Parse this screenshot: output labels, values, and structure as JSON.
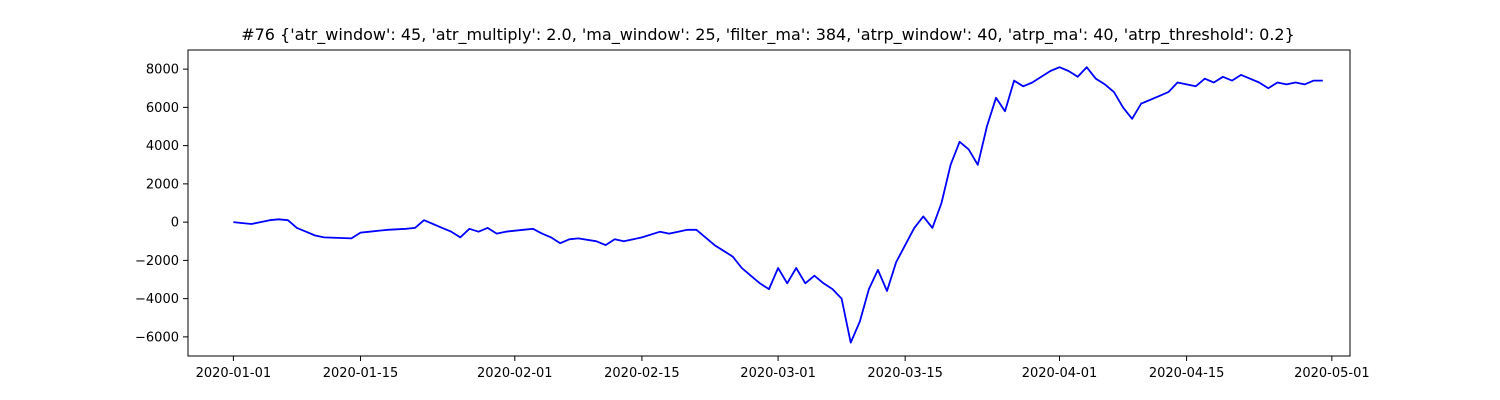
{
  "chart_data": {
    "type": "line",
    "title": "#76 {'atr_window': 45, 'atr_multiply': 2.0, 'ma_window': 25, 'filter_ma': 384, 'atrp_window': 40, 'atrp_ma': 40, 'atrp_threshold': 0.2}",
    "xlabel": "",
    "ylabel": "",
    "xlim": [
      "2019-12-27",
      "2020-05-03"
    ],
    "ylim": [
      -7000,
      9000
    ],
    "x_ticks": [
      "2020-01-01",
      "2020-01-15",
      "2020-02-01",
      "2020-02-15",
      "2020-03-01",
      "2020-03-15",
      "2020-04-01",
      "2020-04-15",
      "2020-05-01"
    ],
    "y_ticks": [
      -6000,
      -4000,
      -2000,
      0,
      2000,
      4000,
      6000,
      8000
    ],
    "grid": false,
    "line_color": "#0000ff",
    "series": [
      {
        "x": [
          "2020-01-01",
          "2020-01-02",
          "2020-01-03",
          "2020-01-04",
          "2020-01-05",
          "2020-01-06",
          "2020-01-07",
          "2020-01-08",
          "2020-01-09",
          "2020-01-10",
          "2020-01-11",
          "2020-01-14",
          "2020-01-15",
          "2020-01-16",
          "2020-01-18",
          "2020-01-20",
          "2020-01-21",
          "2020-01-22",
          "2020-01-23",
          "2020-01-24",
          "2020-01-25",
          "2020-01-26",
          "2020-01-27",
          "2020-01-28",
          "2020-01-29",
          "2020-01-30",
          "2020-01-31",
          "2020-02-01",
          "2020-02-03",
          "2020-02-04",
          "2020-02-05",
          "2020-02-06",
          "2020-02-07",
          "2020-02-08",
          "2020-02-10",
          "2020-02-11",
          "2020-02-12",
          "2020-02-13",
          "2020-02-15",
          "2020-02-17",
          "2020-02-18",
          "2020-02-19",
          "2020-02-20",
          "2020-02-21",
          "2020-02-22",
          "2020-02-23",
          "2020-02-24",
          "2020-02-25",
          "2020-02-26",
          "2020-02-27",
          "2020-02-28",
          "2020-02-29",
          "2020-03-01",
          "2020-03-02",
          "2020-03-03",
          "2020-03-04",
          "2020-03-05",
          "2020-03-06",
          "2020-03-07",
          "2020-03-08",
          "2020-03-09",
          "2020-03-10",
          "2020-03-11",
          "2020-03-12",
          "2020-03-13",
          "2020-03-14",
          "2020-03-15",
          "2020-03-16",
          "2020-03-17",
          "2020-03-18",
          "2020-03-19",
          "2020-03-20",
          "2020-03-21",
          "2020-03-22",
          "2020-03-23",
          "2020-03-24",
          "2020-03-25",
          "2020-03-26",
          "2020-03-27",
          "2020-03-28",
          "2020-03-29",
          "2020-03-30",
          "2020-03-31",
          "2020-04-01",
          "2020-04-02",
          "2020-04-03",
          "2020-04-04",
          "2020-04-05",
          "2020-04-06",
          "2020-04-07",
          "2020-04-08",
          "2020-04-09",
          "2020-04-10",
          "2020-04-12",
          "2020-04-13",
          "2020-04-14",
          "2020-04-15",
          "2020-04-16",
          "2020-04-17",
          "2020-04-18",
          "2020-04-19",
          "2020-04-20",
          "2020-04-21",
          "2020-04-22",
          "2020-04-23",
          "2020-04-24",
          "2020-04-25",
          "2020-04-26",
          "2020-04-27",
          "2020-04-28",
          "2020-04-29",
          "2020-04-30"
        ],
        "y": [
          0,
          -50,
          -100,
          0,
          100,
          150,
          100,
          -300,
          -500,
          -700,
          -800,
          -850,
          -550,
          -500,
          -400,
          -350,
          -300,
          100,
          -100,
          -300,
          -500,
          -800,
          -350,
          -500,
          -300,
          -600,
          -500,
          -450,
          -350,
          -600,
          -800,
          -1100,
          -900,
          -850,
          -1000,
          -1200,
          -900,
          -1000,
          -800,
          -500,
          -600,
          -500,
          -400,
          -400,
          -800,
          -1200,
          -1500,
          -1800,
          -2400,
          -2800,
          -3200,
          -3500,
          -2400,
          -3200,
          -2400,
          -3200,
          -2800,
          -3200,
          -3500,
          -4000,
          -6300,
          -5200,
          -3500,
          -2500,
          -3600,
          -2100,
          -1200,
          -300,
          300,
          -300,
          1000,
          3000,
          4200,
          3800,
          3000,
          5000,
          6500,
          5800,
          7400,
          7100,
          7300,
          7600,
          7900,
          8100,
          7900,
          7600,
          8100,
          7500,
          7200,
          6800,
          6000,
          5400,
          6200,
          6600,
          6800,
          7300,
          7200,
          7100,
          7500,
          7300,
          7600,
          7400,
          7700,
          7500,
          7300,
          7000,
          7300,
          7200,
          7300,
          7200,
          7400,
          7400
        ]
      }
    ]
  }
}
